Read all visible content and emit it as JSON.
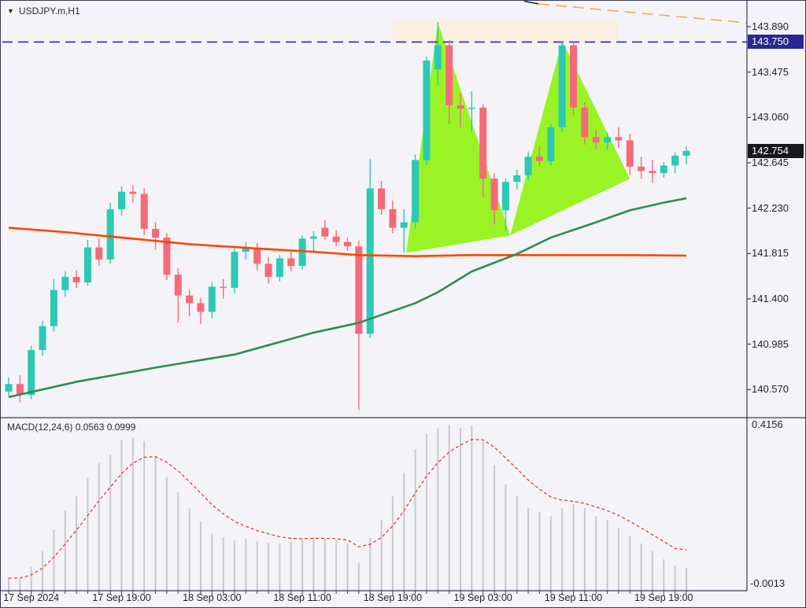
{
  "window": {
    "symbol_label": "USDJPY.m,H1",
    "dropdown_icon": "▼"
  },
  "colors": {
    "bull": "#2cc9b4",
    "bear": "#f56a79",
    "pattern_fill": "#9af425",
    "zone_fill": "#faf0e2",
    "ma_fast_orange": "#ff4500",
    "ma_slow_green": "#2e8b57",
    "resistance_line": "#2b2ba0",
    "trendline_orange": "#f5a84e",
    "trendline_dark": "#26263f",
    "macd_hist": "#c9c9cd",
    "macd_signal": "#e53935",
    "badge_resistance_bg": "#28288f",
    "badge_last_bg": "#17171d",
    "frame": "#3a3a55",
    "background": "#f4f4f8",
    "text": "#1e1e2e"
  },
  "chart_data": {
    "type": "candlestick",
    "title": "USDJPY.m,H1",
    "symbol": "USDJPY.m",
    "timeframe": "H1",
    "resistance_price": "143.750",
    "last_price": "142.754",
    "price_axis_ticks": [
      "143.890",
      "143.475",
      "143.060",
      "142.645",
      "142.230",
      "141.815",
      "141.400",
      "140.985",
      "140.570"
    ],
    "time_labels": [
      {
        "bar": 2,
        "label": "17 Sep 2024"
      },
      {
        "bar": 10,
        "label": "17 Sep 19:00"
      },
      {
        "bar": 18,
        "label": "18 Sep 03:00"
      },
      {
        "bar": 26,
        "label": "18 Sep 11:00"
      },
      {
        "bar": 34,
        "label": "18 Sep 19:00"
      },
      {
        "bar": 42,
        "label": "19 Sep 03:00"
      },
      {
        "bar": 50,
        "label": "19 Sep 11:00"
      },
      {
        "bar": 58,
        "label": "19 Sep 19:00"
      }
    ],
    "candles": [
      [
        140.55,
        140.68,
        140.51,
        140.62
      ],
      [
        140.62,
        140.7,
        140.45,
        140.52
      ],
      [
        140.52,
        140.97,
        140.48,
        140.93
      ],
      [
        140.93,
        141.2,
        140.88,
        141.15
      ],
      [
        141.15,
        141.58,
        141.1,
        141.48
      ],
      [
        141.48,
        141.65,
        141.42,
        141.6
      ],
      [
        141.6,
        141.66,
        141.5,
        141.55
      ],
      [
        141.55,
        141.94,
        141.52,
        141.87
      ],
      [
        141.87,
        141.95,
        141.7,
        141.76
      ],
      [
        141.76,
        142.28,
        141.72,
        142.22
      ],
      [
        142.22,
        142.43,
        142.16,
        142.38
      ],
      [
        142.38,
        142.44,
        142.28,
        142.36
      ],
      [
        142.36,
        142.41,
        141.98,
        142.04
      ],
      [
        142.04,
        142.1,
        141.85,
        141.96
      ],
      [
        141.96,
        142.0,
        141.57,
        141.62
      ],
      [
        141.62,
        141.68,
        141.18,
        141.43
      ],
      [
        141.43,
        141.48,
        141.24,
        141.36
      ],
      [
        141.36,
        141.41,
        141.17,
        141.28
      ],
      [
        141.28,
        141.55,
        141.22,
        141.51
      ],
      [
        141.51,
        141.58,
        141.4,
        141.5
      ],
      [
        141.5,
        141.88,
        141.45,
        141.83
      ],
      [
        141.83,
        141.92,
        141.76,
        141.87
      ],
      [
        141.87,
        141.91,
        141.66,
        141.72
      ],
      [
        141.72,
        141.78,
        141.54,
        141.6
      ],
      [
        141.6,
        141.8,
        141.56,
        141.77
      ],
      [
        141.77,
        141.83,
        141.65,
        141.7
      ],
      [
        141.7,
        141.98,
        141.67,
        141.95
      ],
      [
        141.95,
        142.02,
        141.83,
        141.97
      ],
      [
        142.05,
        142.12,
        141.94,
        141.97
      ],
      [
        141.97,
        142.03,
        141.88,
        141.92
      ],
      [
        141.92,
        141.96,
        141.84,
        141.88
      ],
      [
        141.88,
        141.93,
        140.38,
        141.08
      ],
      [
        141.08,
        142.68,
        141.04,
        142.41
      ],
      [
        142.41,
        142.48,
        142.17,
        142.22
      ],
      [
        142.22,
        142.3,
        142.0,
        142.05
      ],
      [
        142.05,
        142.22,
        141.82,
        142.1
      ],
      [
        142.1,
        142.72,
        142.04,
        142.67
      ],
      [
        142.67,
        143.62,
        142.62,
        143.58
      ],
      [
        143.5,
        143.93,
        143.35,
        143.72
      ],
      [
        143.72,
        143.77,
        143.0,
        143.17
      ],
      [
        143.17,
        143.28,
        142.97,
        143.14
      ],
      [
        143.14,
        143.3,
        142.93,
        143.15
      ],
      [
        143.15,
        143.18,
        142.33,
        142.5
      ],
      [
        142.5,
        142.55,
        142.08,
        142.21
      ],
      [
        142.21,
        142.5,
        142.02,
        142.47
      ],
      [
        142.47,
        142.58,
        142.4,
        142.53
      ],
      [
        142.53,
        142.75,
        142.49,
        142.7
      ],
      [
        142.7,
        142.8,
        142.61,
        142.66
      ],
      [
        142.66,
        143.0,
        142.62,
        142.97
      ],
      [
        142.97,
        143.75,
        142.93,
        143.72
      ],
      [
        143.72,
        143.76,
        143.08,
        143.15
      ],
      [
        143.15,
        143.2,
        142.81,
        142.88
      ],
      [
        142.88,
        142.95,
        142.77,
        142.83
      ],
      [
        142.83,
        142.92,
        142.76,
        142.88
      ],
      [
        142.88,
        142.97,
        142.78,
        142.85
      ],
      [
        142.85,
        142.91,
        142.53,
        142.61
      ],
      [
        142.61,
        142.7,
        142.5,
        142.57
      ],
      [
        142.57,
        142.67,
        142.46,
        142.55
      ],
      [
        142.55,
        142.65,
        142.51,
        142.62
      ],
      [
        142.62,
        142.74,
        142.55,
        142.71
      ],
      [
        142.71,
        142.8,
        142.63,
        142.754
      ]
    ],
    "ma_slow_green": [
      [
        0,
        140.5
      ],
      [
        6,
        140.64
      ],
      [
        13,
        140.77
      ],
      [
        20,
        140.89
      ],
      [
        27,
        141.09
      ],
      [
        31,
        141.18
      ],
      [
        36,
        141.36
      ],
      [
        38,
        141.46
      ],
      [
        41,
        141.65
      ],
      [
        45,
        141.81
      ],
      [
        48,
        141.96
      ],
      [
        52,
        142.1
      ],
      [
        55,
        142.21
      ],
      [
        58,
        142.28
      ],
      [
        60,
        142.32
      ]
    ],
    "ma_fast_orange": [
      [
        0,
        142.05
      ],
      [
        5,
        142.01
      ],
      [
        11,
        141.95
      ],
      [
        16,
        141.9
      ],
      [
        22,
        141.86
      ],
      [
        27,
        141.83
      ],
      [
        31,
        141.8
      ],
      [
        36,
        141.79
      ],
      [
        41,
        141.8
      ],
      [
        48,
        141.8
      ],
      [
        55,
        141.8
      ],
      [
        60,
        141.795
      ]
    ],
    "pattern": {
      "name": "double-top",
      "triangles": [
        [
          [
            35.2,
            141.82
          ],
          [
            38.0,
            143.93
          ],
          [
            44.4,
            141.98
          ]
        ],
        [
          [
            44.4,
            141.98
          ],
          [
            49.0,
            143.76
          ],
          [
            55.0,
            142.5
          ]
        ]
      ],
      "zone_rect": {
        "bar_start": 34,
        "bar_end": 54,
        "price_low": 143.73,
        "price_high": 143.96
      }
    },
    "resistance_hline_price": 143.75,
    "trendline": {
      "dark_segment": [
        [
          45.64,
          144.124
        ],
        [
          46.9,
          144.099
        ]
      ],
      "from": [
        46.9,
        144.099
      ],
      "to": [
        65.4,
        143.926
      ]
    },
    "macd": {
      "label": "MACD(12,24,6)",
      "main_value": "0.0563",
      "signal_value": "0.0999",
      "display": "MACD(12,24,6) 0.0563 0.0999",
      "scale_max": "0.4156",
      "scale_min": "-0.0013",
      "histogram": [
        0.032,
        0.026,
        0.057,
        0.097,
        0.151,
        0.198,
        0.234,
        0.279,
        0.316,
        0.337,
        0.374,
        0.38,
        0.371,
        0.335,
        0.282,
        0.243,
        0.204,
        0.171,
        0.14,
        0.132,
        0.124,
        0.128,
        0.122,
        0.118,
        0.116,
        0.12,
        0.126,
        0.132,
        0.128,
        0.126,
        0.116,
        0.067,
        0.13,
        0.175,
        0.234,
        0.292,
        0.351,
        0.39,
        0.403,
        0.412,
        0.404,
        0.41,
        0.371,
        0.312,
        0.263,
        0.234,
        0.204,
        0.194,
        0.184,
        0.204,
        0.214,
        0.204,
        0.184,
        0.175,
        0.155,
        0.135,
        0.116,
        0.097,
        0.077,
        0.061,
        0.0563
      ],
      "signal": [
        0.03,
        0.03,
        0.038,
        0.055,
        0.082,
        0.115,
        0.149,
        0.186,
        0.223,
        0.256,
        0.29,
        0.316,
        0.331,
        0.332,
        0.318,
        0.297,
        0.27,
        0.242,
        0.213,
        0.19,
        0.171,
        0.159,
        0.148,
        0.14,
        0.133,
        0.129,
        0.128,
        0.129,
        0.129,
        0.128,
        0.125,
        0.108,
        0.114,
        0.131,
        0.16,
        0.198,
        0.242,
        0.284,
        0.317,
        0.344,
        0.361,
        0.375,
        0.374,
        0.356,
        0.329,
        0.302,
        0.274,
        0.251,
        0.232,
        0.224,
        0.221,
        0.216,
        0.207,
        0.198,
        0.186,
        0.171,
        0.155,
        0.138,
        0.121,
        0.104,
        0.0999
      ]
    }
  }
}
